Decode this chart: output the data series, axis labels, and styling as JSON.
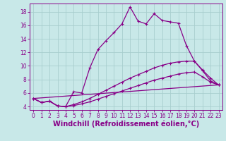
{
  "xlabel": "Windchill (Refroidissement éolien,°C)",
  "bg_color": "#c8e8e8",
  "grid_color": "#a8cece",
  "line_color": "#880088",
  "xlim": [
    -0.5,
    23.5
  ],
  "ylim": [
    3.5,
    19.2
  ],
  "xticks": [
    0,
    1,
    2,
    3,
    4,
    5,
    6,
    7,
    8,
    9,
    10,
    11,
    12,
    13,
    14,
    15,
    16,
    17,
    18,
    19,
    20,
    21,
    22,
    23
  ],
  "yticks": [
    4,
    6,
    8,
    10,
    12,
    14,
    16,
    18
  ],
  "line1_x": [
    0,
    1,
    2,
    3,
    4,
    5,
    6,
    7,
    8,
    9,
    10,
    11,
    12,
    13,
    14,
    15,
    16,
    17,
    18,
    19,
    20,
    21,
    22,
    23
  ],
  "line1_y": [
    5.2,
    4.6,
    4.8,
    4.1,
    4.0,
    6.2,
    6.0,
    9.7,
    12.4,
    13.7,
    14.9,
    16.2,
    18.7,
    16.6,
    16.2,
    17.7,
    16.7,
    16.5,
    16.3,
    13.0,
    10.7,
    9.3,
    7.8,
    7.2
  ],
  "line2_x": [
    0,
    1,
    2,
    3,
    4,
    5,
    6,
    7,
    8,
    9,
    10,
    11,
    12,
    13,
    14,
    15,
    16,
    17,
    18,
    19,
    20,
    21,
    22,
    23
  ],
  "line2_y": [
    5.2,
    4.6,
    4.8,
    4.1,
    4.0,
    4.3,
    4.7,
    5.2,
    5.8,
    6.4,
    7.0,
    7.6,
    8.2,
    8.7,
    9.2,
    9.7,
    10.1,
    10.4,
    10.6,
    10.7,
    10.7,
    9.4,
    8.2,
    7.2
  ],
  "line3_x": [
    0,
    1,
    2,
    3,
    4,
    5,
    6,
    7,
    8,
    9,
    10,
    11,
    12,
    13,
    14,
    15,
    16,
    17,
    18,
    19,
    20,
    21,
    22,
    23
  ],
  "line3_y": [
    5.2,
    4.6,
    4.8,
    4.1,
    4.0,
    4.15,
    4.4,
    4.7,
    5.1,
    5.5,
    5.9,
    6.3,
    6.7,
    7.1,
    7.5,
    7.9,
    8.2,
    8.5,
    8.8,
    9.0,
    9.1,
    8.4,
    7.6,
    7.2
  ],
  "line4_x": [
    0,
    23
  ],
  "line4_y": [
    5.2,
    7.2
  ],
  "fontsize_tick": 5.5,
  "fontsize_xlabel": 7.0
}
